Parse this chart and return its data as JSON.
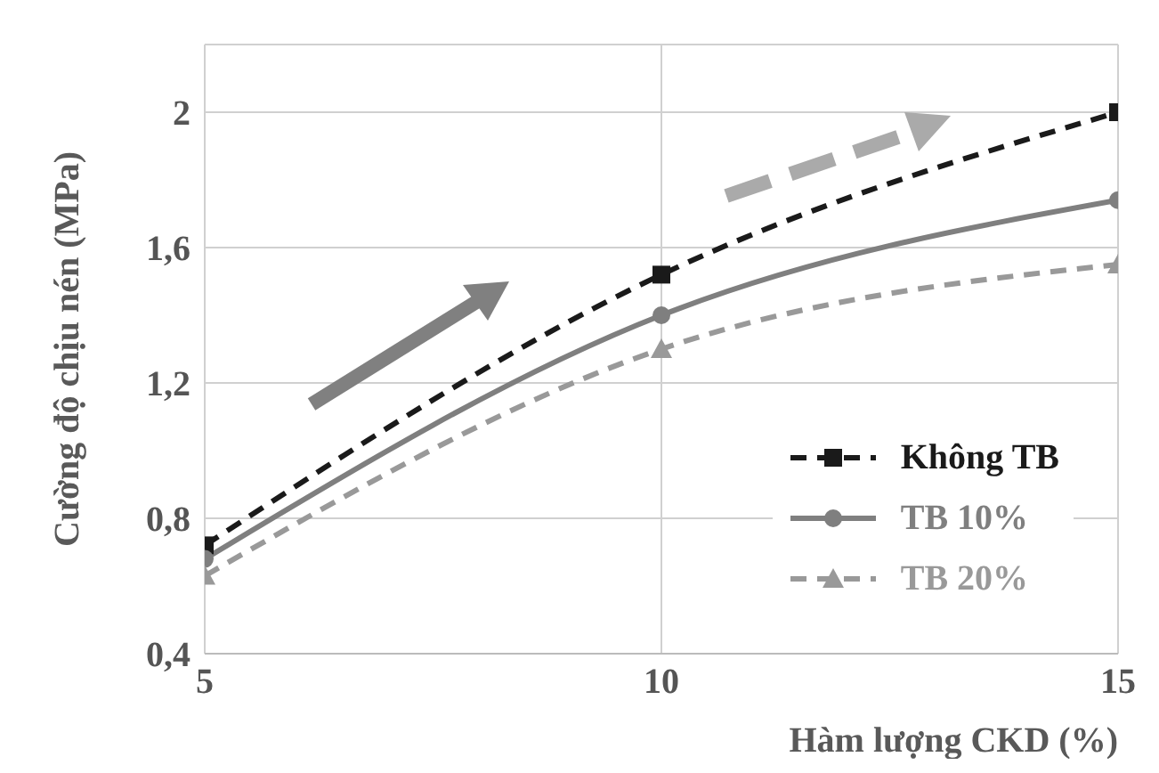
{
  "chart_data": {
    "type": "line",
    "xlabel": "Hàm lượng CKD (%)",
    "ylabel": "Cường độ chịu nén (MPa)",
    "x": [
      5,
      10,
      15
    ],
    "series": [
      {
        "name": "Không TB",
        "color": "#1a1a1a",
        "values": [
          0.72,
          1.52,
          2.0
        ],
        "marker": "square",
        "line_style": "dashed"
      },
      {
        "name": "TB 10%",
        "color": "#7f7f7f",
        "values": [
          0.68,
          1.4,
          1.74
        ],
        "marker": "circle",
        "line_style": "solid"
      },
      {
        "name": "TB 20%",
        "color": "#999999",
        "values": [
          0.63,
          1.3,
          1.55
        ],
        "marker": "triangle",
        "line_style": "dashed"
      }
    ],
    "xlim": [
      5,
      15
    ],
    "xticks": [
      5,
      10,
      15
    ],
    "ylim": [
      0.4,
      2.2
    ],
    "yticks": [
      {
        "value": 0.4,
        "label": "0,4"
      },
      {
        "value": 0.8,
        "label": "0,8"
      },
      {
        "value": 1.2,
        "label": "1,2"
      },
      {
        "value": 1.6,
        "label": "1,6"
      },
      {
        "value": 2,
        "label": "2"
      }
    ],
    "grid": true,
    "legend": "bottom right"
  }
}
